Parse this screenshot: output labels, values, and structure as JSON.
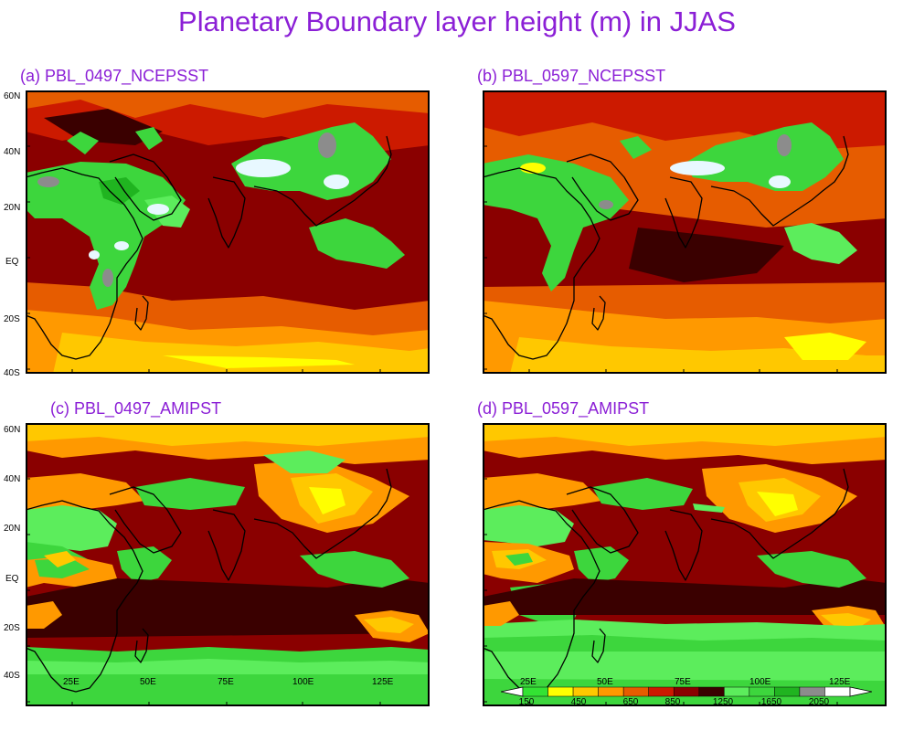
{
  "title": "Planetary Boundary layer height (m) in JJAS",
  "panels": [
    {
      "title": "(a)  PBL_0497_NCEPSST"
    },
    {
      "title": "(b) PBL_0597_NCEPSST"
    },
    {
      "title": "(c) PBL_0497_AMIPST"
    },
    {
      "title": "(d) PBL_0597_AMIPST"
    }
  ],
  "axes": {
    "lat_labels": [
      "60N",
      "40N",
      "20N",
      "EQ",
      "20S",
      "40S"
    ],
    "lon_labels": [
      "25E",
      "50E",
      "75E",
      "100E",
      "125E"
    ]
  },
  "colorbar": {
    "labels": [
      "150",
      "450",
      "650",
      "850",
      "1250",
      "1650",
      "2050"
    ],
    "colors": [
      "#33e333",
      "#ffff00",
      "#ffc800",
      "#ff9900",
      "#e65c00",
      "#cc1a00",
      "#8a0000",
      "#3a0000",
      "#5ced5c",
      "#3dd63d",
      "#20b420",
      "#8c8c8c",
      "#ffffff"
    ]
  }
}
